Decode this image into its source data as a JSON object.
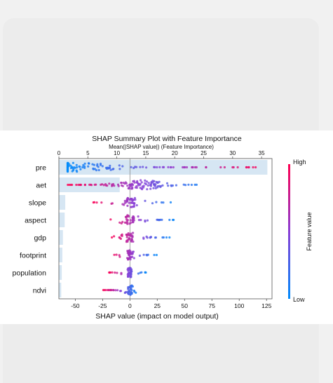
{
  "chart_data": {
    "type": "scatter",
    "title": "SHAP Summary Plot with Feature Importance",
    "top_axis_label": "Mean(|SHAP value|) (Feature Importance)",
    "xlabel": "SHAP value (impact on model output)",
    "colorbar_label": "Feature value",
    "colorbar_high": "High",
    "colorbar_low": "Low",
    "colors": {
      "high": "#ff0051",
      "low": "#008bfb",
      "bar": "#cfe2f1"
    },
    "x_ticks": [
      "-50",
      "-25",
      "0",
      "25",
      "50",
      "75",
      "100",
      "125"
    ],
    "x_tick_values": [
      -50,
      -25,
      0,
      25,
      50,
      75,
      100,
      125
    ],
    "xlim": [
      -65,
      130
    ],
    "top_ticks": [
      "0",
      "5",
      "10",
      "15",
      "20",
      "25",
      "30",
      "35"
    ],
    "top_tick_values": [
      0,
      5,
      10,
      15,
      20,
      25,
      30,
      35
    ],
    "top_xlim": [
      0,
      36.8
    ],
    "features": [
      {
        "name": "pre",
        "importance": 36.0,
        "min": -57,
        "max": 122,
        "center": -45
      },
      {
        "name": "aet",
        "importance": 10.5,
        "min": -57,
        "max": 62,
        "center": 10
      },
      {
        "name": "slope",
        "importance": 1.1,
        "min": -35,
        "max": 42,
        "center": 0
      },
      {
        "name": "aspect",
        "importance": 1.0,
        "min": -22,
        "max": 42,
        "center": 0
      },
      {
        "name": "gdp",
        "importance": 0.7,
        "min": -18,
        "max": 38,
        "center": 0
      },
      {
        "name": "footprint",
        "importance": 0.6,
        "min": -18,
        "max": 25,
        "center": 0
      },
      {
        "name": "population",
        "importance": 0.5,
        "min": -20,
        "max": 15,
        "center": 0
      },
      {
        "name": "ndvi",
        "importance": 0.4,
        "min": -25,
        "max": 8,
        "center": 0
      }
    ]
  }
}
